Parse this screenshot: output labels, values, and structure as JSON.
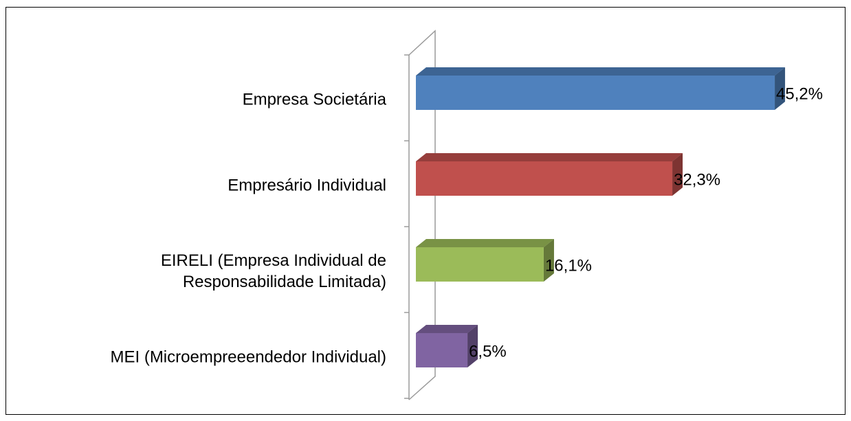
{
  "chart_data": {
    "type": "bar3d_horizontal",
    "categories": [
      "Empresa Societária",
      "Empresário Individual",
      "EIRELI (Empresa Individual de Responsabilidade Limitada)",
      "MEI (Microempreeendedor Individual)"
    ],
    "values": [
      45.2,
      32.3,
      16.1,
      6.5
    ],
    "value_labels": [
      "45,2%",
      "32,3%",
      "16,1%",
      "6,5%"
    ],
    "colors": [
      "#4f81bd",
      "#c0504d",
      "#9bbb59",
      "#8064a2"
    ]
  }
}
